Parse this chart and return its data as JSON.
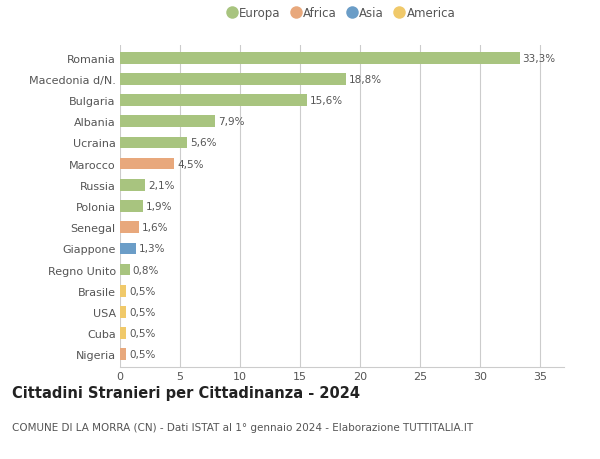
{
  "countries": [
    "Romania",
    "Macedonia d/N.",
    "Bulgaria",
    "Albania",
    "Ucraina",
    "Marocco",
    "Russia",
    "Polonia",
    "Senegal",
    "Giappone",
    "Regno Unito",
    "Brasile",
    "USA",
    "Cuba",
    "Nigeria"
  ],
  "values": [
    33.3,
    18.8,
    15.6,
    7.9,
    5.6,
    4.5,
    2.1,
    1.9,
    1.6,
    1.3,
    0.8,
    0.5,
    0.5,
    0.5,
    0.5
  ],
  "labels": [
    "33,3%",
    "18,8%",
    "15,6%",
    "7,9%",
    "5,6%",
    "4,5%",
    "2,1%",
    "1,9%",
    "1,6%",
    "1,3%",
    "0,8%",
    "0,5%",
    "0,5%",
    "0,5%",
    "0,5%"
  ],
  "continents": [
    "Europa",
    "Europa",
    "Europa",
    "Europa",
    "Europa",
    "Africa",
    "Europa",
    "Europa",
    "Africa",
    "Asia",
    "Europa",
    "America",
    "America",
    "America",
    "Africa"
  ],
  "continent_colors": {
    "Europa": "#a8c47f",
    "Africa": "#e8a87c",
    "Asia": "#6b9dc7",
    "America": "#f0c96a"
  },
  "legend_order": [
    "Europa",
    "Africa",
    "Asia",
    "America"
  ],
  "title": "Cittadini Stranieri per Cittadinanza - 2024",
  "subtitle": "COMUNE DI LA MORRA (CN) - Dati ISTAT al 1° gennaio 2024 - Elaborazione TUTTITALIA.IT",
  "xlim": [
    0,
    37
  ],
  "xticks": [
    0,
    5,
    10,
    15,
    20,
    25,
    30,
    35
  ],
  "bg_color": "#ffffff",
  "grid_color": "#cccccc",
  "bar_height": 0.55,
  "title_fontsize": 10.5,
  "subtitle_fontsize": 7.5,
  "label_fontsize": 7.5,
  "tick_fontsize": 8,
  "legend_fontsize": 8.5
}
